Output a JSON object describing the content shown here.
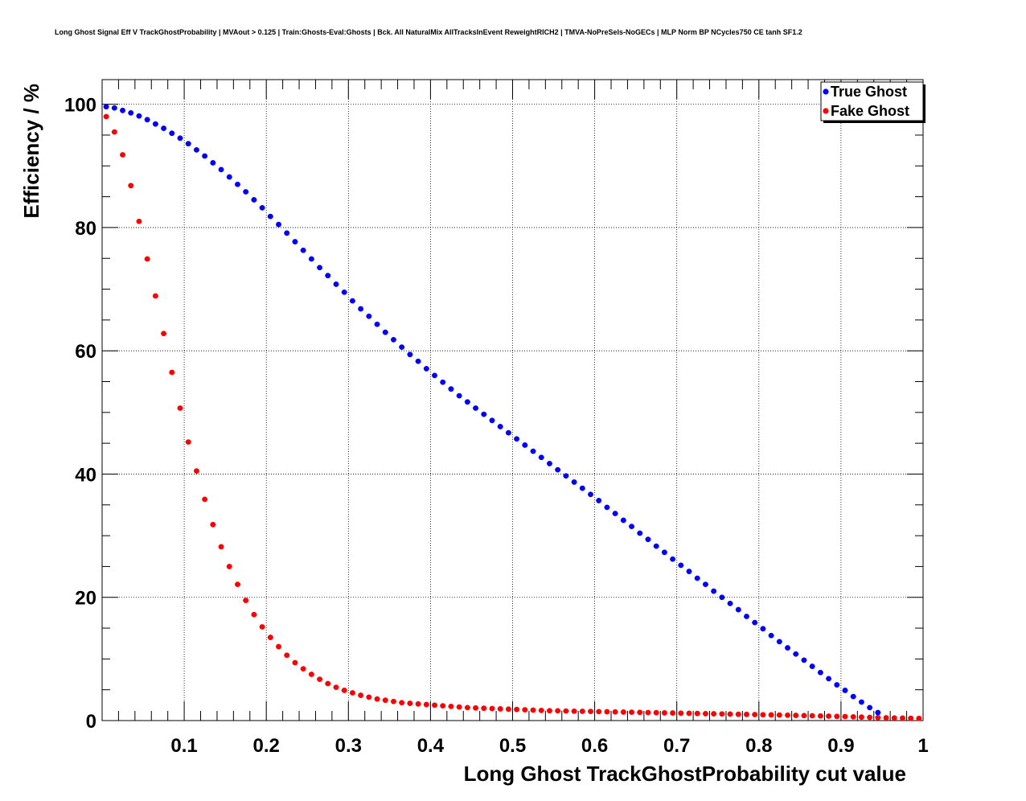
{
  "chart_data": {
    "type": "scatter",
    "title": "Long Ghost Signal Eff V TrackGhostProbability | MVAout > 0.125 | Train:Ghosts-Eval:Ghosts | Bck. All NaturalMix AllTracksInEvent ReweightRICH2 | TMVA-NoPreSels-NoGECs | MLP Norm BP NCycles750 CE tanh SF1.2",
    "xlabel": "Long Ghost TrackGhostProbability cut value",
    "ylabel": "Efficiency / %",
    "xlim": [
      0,
      1
    ],
    "ylim": [
      0,
      104
    ],
    "grid": true,
    "legend_position": "top-right",
    "x_tick_labels": [
      "0.1",
      "0.2",
      "0.3",
      "0.4",
      "0.5",
      "0.6",
      "0.7",
      "0.8",
      "0.9",
      "1"
    ],
    "x_tick_values": [
      0.1,
      0.2,
      0.3,
      0.4,
      0.5,
      0.6,
      0.7,
      0.8,
      0.9,
      1.0
    ],
    "y_tick_labels": [
      "0",
      "20",
      "40",
      "60",
      "80",
      "100"
    ],
    "y_tick_values": [
      0,
      20,
      40,
      60,
      80,
      100
    ],
    "x": [
      0.005,
      0.015,
      0.025,
      0.035,
      0.045,
      0.055,
      0.065,
      0.075,
      0.085,
      0.095,
      0.105,
      0.115,
      0.125,
      0.135,
      0.145,
      0.155,
      0.165,
      0.175,
      0.185,
      0.195,
      0.205,
      0.215,
      0.225,
      0.235,
      0.245,
      0.255,
      0.265,
      0.275,
      0.285,
      0.295,
      0.305,
      0.315,
      0.325,
      0.335,
      0.345,
      0.355,
      0.365,
      0.375,
      0.385,
      0.395,
      0.405,
      0.415,
      0.425,
      0.435,
      0.445,
      0.455,
      0.465,
      0.475,
      0.485,
      0.495,
      0.505,
      0.515,
      0.525,
      0.535,
      0.545,
      0.555,
      0.565,
      0.575,
      0.585,
      0.595,
      0.605,
      0.615,
      0.625,
      0.635,
      0.645,
      0.655,
      0.665,
      0.675,
      0.685,
      0.695,
      0.705,
      0.715,
      0.725,
      0.735,
      0.745,
      0.755,
      0.765,
      0.775,
      0.785,
      0.795,
      0.805,
      0.815,
      0.825,
      0.835,
      0.845,
      0.855,
      0.865,
      0.875,
      0.885,
      0.895,
      0.905,
      0.915,
      0.925,
      0.935,
      0.945,
      0.955,
      0.965,
      0.975,
      0.985,
      0.995
    ],
    "series": [
      {
        "name": "True Ghost",
        "color": "#0000ff",
        "values": [
          99.6,
          99.4,
          99.0,
          98.6,
          98.1,
          97.5,
          96.8,
          96.1,
          95.3,
          94.5,
          93.6,
          92.6,
          91.6,
          90.5,
          89.4,
          88.2,
          87.0,
          85.8,
          84.5,
          83.2,
          81.8,
          80.5,
          79.1,
          77.7,
          76.3,
          74.9,
          73.5,
          72.2,
          70.8,
          69.5,
          68.1,
          66.8,
          65.6,
          64.3,
          63.0,
          61.8,
          60.6,
          59.4,
          58.3,
          57.1,
          56.0,
          54.9,
          53.8,
          52.7,
          51.7,
          50.7,
          49.7,
          48.7,
          47.7,
          46.7,
          45.7,
          44.7,
          43.7,
          42.7,
          41.7,
          40.7,
          39.7,
          38.7,
          37.7,
          36.7,
          35.7,
          34.6,
          33.6,
          32.5,
          31.5,
          30.4,
          29.4,
          28.3,
          27.3,
          26.2,
          25.2,
          24.2,
          23.1,
          22.1,
          21.0,
          20.0,
          19.0,
          18.0,
          16.9,
          15.9,
          14.9,
          13.8,
          12.8,
          11.8,
          10.8,
          9.8,
          8.8,
          7.8,
          6.8,
          5.8,
          4.9,
          3.9,
          3.0,
          2.1,
          1.3
        ],
        "x_start_index": 0
      },
      {
        "name": "Fake Ghost",
        "color": "#ff0000",
        "values": [
          98.0,
          95.5,
          91.8,
          86.8,
          81.0,
          74.9,
          68.9,
          62.8,
          56.5,
          50.7,
          45.2,
          40.5,
          35.9,
          31.8,
          28.2,
          25.0,
          22.1,
          19.5,
          17.2,
          15.2,
          13.5,
          12.0,
          10.6,
          9.4,
          8.4,
          7.5,
          6.7,
          6.0,
          5.4,
          4.9,
          4.5,
          4.1,
          3.8,
          3.5,
          3.3,
          3.1,
          2.9,
          2.8,
          2.7,
          2.6,
          2.5,
          2.4,
          2.3,
          2.2,
          2.1,
          2.05,
          2.0,
          1.95,
          1.9,
          1.85,
          1.8,
          1.75,
          1.7,
          1.65,
          1.6,
          1.58,
          1.55,
          1.52,
          1.5,
          1.48,
          1.45,
          1.43,
          1.4,
          1.38,
          1.35,
          1.33,
          1.3,
          1.28,
          1.25,
          1.23,
          1.2,
          1.18,
          1.15,
          1.12,
          1.1,
          1.08,
          1.05,
          1.02,
          1.0,
          0.98,
          0.95,
          0.92,
          0.9,
          0.87,
          0.84,
          0.81,
          0.78,
          0.75,
          0.72,
          0.68,
          0.65,
          0.6,
          0.56,
          0.52,
          0.48,
          0.45,
          0.42,
          0.4,
          0.38,
          0.36
        ],
        "x_start_index": 0
      }
    ]
  }
}
